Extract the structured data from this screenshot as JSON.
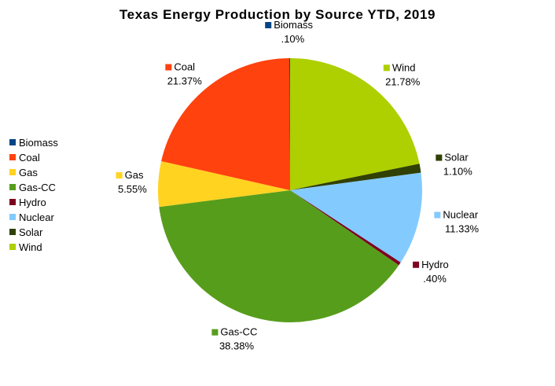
{
  "chart_data": {
    "type": "pie",
    "title": "Texas Energy Production by Source YTD, 2019",
    "start_angle": "12 o'clock",
    "direction": "clockwise",
    "legend_position": "left",
    "slices": [
      {
        "label": "Wind",
        "value": 21.78,
        "value_label": "21.78%",
        "color": "#aecf00"
      },
      {
        "label": "Solar",
        "value": 1.1,
        "value_label": "1.10%",
        "color": "#314004"
      },
      {
        "label": "Nuclear",
        "value": 11.33,
        "value_label": "11.33%",
        "color": "#83caff"
      },
      {
        "label": "Hydro",
        "value": 0.4,
        "value_label": ".40%",
        "color": "#7e0021"
      },
      {
        "label": "Gas-CC",
        "value": 38.38,
        "value_label": "38.38%",
        "color": "#579d1c"
      },
      {
        "label": "Gas",
        "value": 5.55,
        "value_label": "5.55%",
        "color": "#ffd320"
      },
      {
        "label": "Coal",
        "value": 21.37,
        "value_label": "21.37%",
        "color": "#ff420e"
      },
      {
        "label": "Biomass",
        "value": 0.1,
        "value_label": ".10%",
        "color": "#004586"
      }
    ],
    "legend": [
      "Biomass",
      "Coal",
      "Gas",
      "Gas-CC",
      "Hydro",
      "Nuclear",
      "Solar",
      "Wind"
    ]
  }
}
